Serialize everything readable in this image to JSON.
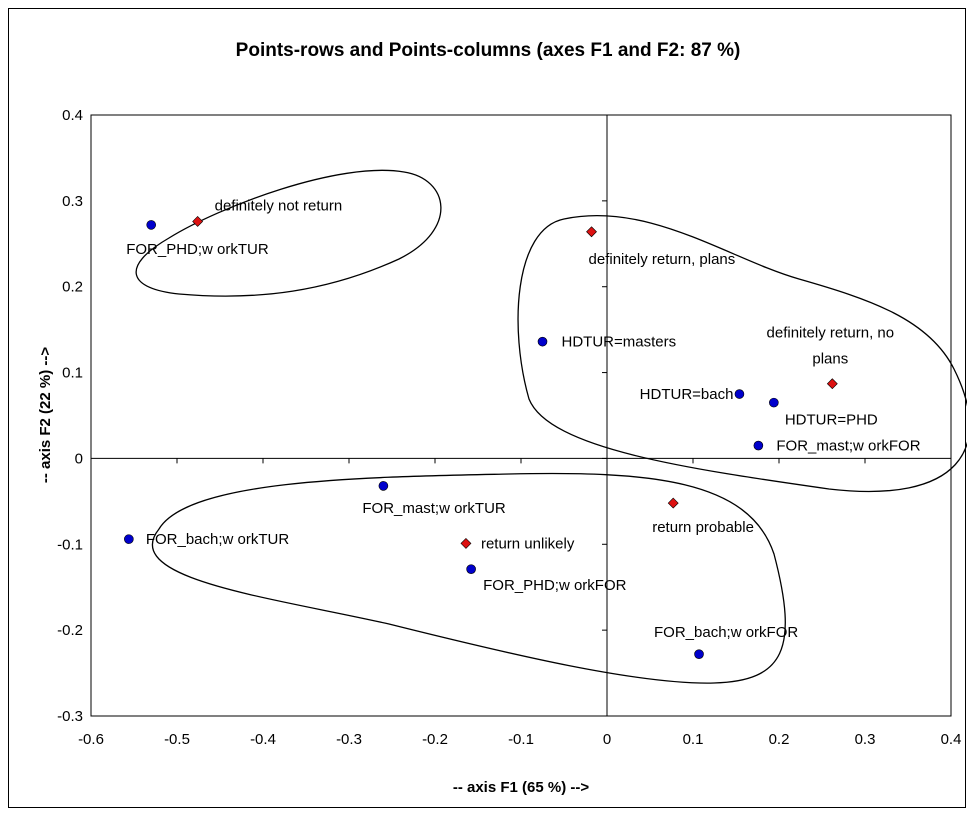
{
  "chart_data": {
    "type": "scatter",
    "title": "Points-rows and Points-columns (axes F1 and F2: 87 %)",
    "xlabel": "-- axis F1 (65 %) -->",
    "ylabel": "-- axis F2 (22 %) -->",
    "xlim": [
      -0.6,
      0.4
    ],
    "ylim": [
      -0.3,
      0.4
    ],
    "x_ticks": [
      "-0.6",
      "-0.5",
      "-0.4",
      "-0.3",
      "-0.2",
      "-0.1",
      "0",
      "0.1",
      "0.2",
      "0.3",
      "0.4"
    ],
    "y_ticks": [
      "0.4",
      "0.3",
      "0.2",
      "0.1",
      "0",
      "-0.1",
      "-0.2",
      "-0.3"
    ],
    "grid": false,
    "series": [
      {
        "marker": "circle",
        "color": "#0000cc",
        "points": [
          {
            "label": "FOR_PHD;w orkTUR",
            "x": -0.53,
            "y": 0.272
          },
          {
            "label": "HDTUR=masters",
            "x": -0.075,
            "y": 0.136
          },
          {
            "label": "HDTUR=bach",
            "x": 0.154,
            "y": 0.075
          },
          {
            "label": "HDTUR=PHD",
            "x": 0.194,
            "y": 0.065
          },
          {
            "label": "FOR_mast;w orkFOR",
            "x": 0.176,
            "y": 0.015
          },
          {
            "label": "FOR_mast;w orkTUR",
            "x": -0.26,
            "y": -0.032
          },
          {
            "label": "FOR_bach;w orkTUR",
            "x": -0.556,
            "y": -0.094
          },
          {
            "label": "FOR_PHD;w orkFOR",
            "x": -0.158,
            "y": -0.129
          },
          {
            "label": "FOR_bach;w orkFOR",
            "x": 0.107,
            "y": -0.228
          }
        ]
      },
      {
        "marker": "diamond",
        "color": "#dd1111",
        "points": [
          {
            "label": "definitely not return",
            "x": -0.476,
            "y": 0.276
          },
          {
            "label": "definitely return, plans",
            "x": -0.018,
            "y": 0.264
          },
          {
            "label": "definitely return, no plans",
            "x": 0.262,
            "y": 0.087
          },
          {
            "label": "return probable",
            "x": 0.077,
            "y": -0.052
          },
          {
            "label": "return unlikely",
            "x": -0.164,
            "y": -0.099
          }
        ]
      }
    ]
  }
}
